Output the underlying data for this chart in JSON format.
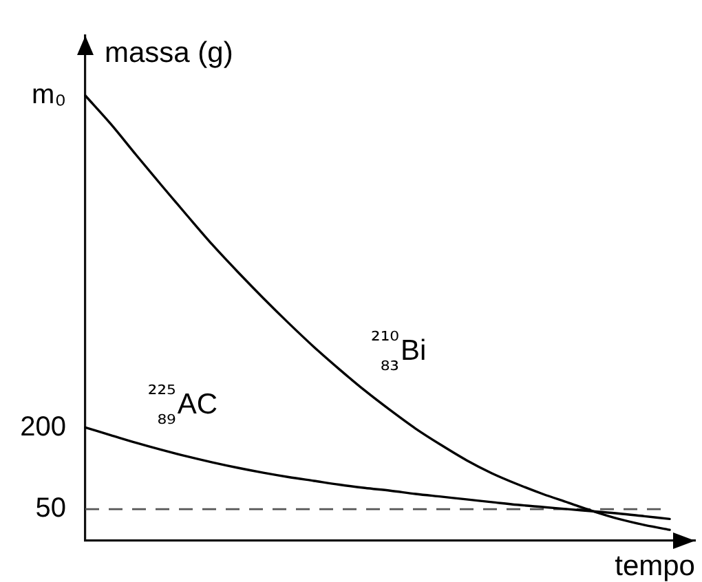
{
  "chart_data": {
    "type": "line",
    "xlabel": "tempo",
    "ylabel": "massa (g)",
    "categories": [
      null,
      null,
      null,
      null,
      null,
      null,
      null,
      null,
      null,
      null,
      null,
      null,
      null,
      null,
      null,
      null,
      null,
      null,
      null,
      null,
      null,
      null,
      null,
      null,
      null
    ],
    "series": [
      {
        "name": "²¹⁰₈₃Bi",
        "color": "#000000",
        "values": [
          810,
          758,
          701,
          645,
          590,
          536,
          486,
          438,
          392,
          348,
          307,
          268,
          232,
          198,
          168,
          140,
          116,
          96,
          78,
          62,
          46,
          32,
          21,
          12,
          null
        ]
      },
      {
        "name": "²²⁵₈₉AC",
        "color": "#000000",
        "values": [
          200,
          186,
          172,
          159,
          147,
          136,
          126,
          117,
          109,
          102,
          95,
          89,
          84,
          78,
          73,
          68,
          63,
          58,
          54,
          50,
          46,
          42,
          37,
          32,
          null
        ]
      }
    ],
    "ylim": [
      -8,
      920
    ],
    "yticks": [
      50,
      200,
      {
        "value": 810,
        "label": "m₀"
      }
    ],
    "ref_lines": [
      {
        "axis": "y",
        "value": 50,
        "line_style": "dashed",
        "color": "#555555"
      }
    ],
    "grid": false,
    "legend": false,
    "marker": "none",
    "line_style": "solid",
    "tick_labels": "y"
  }
}
